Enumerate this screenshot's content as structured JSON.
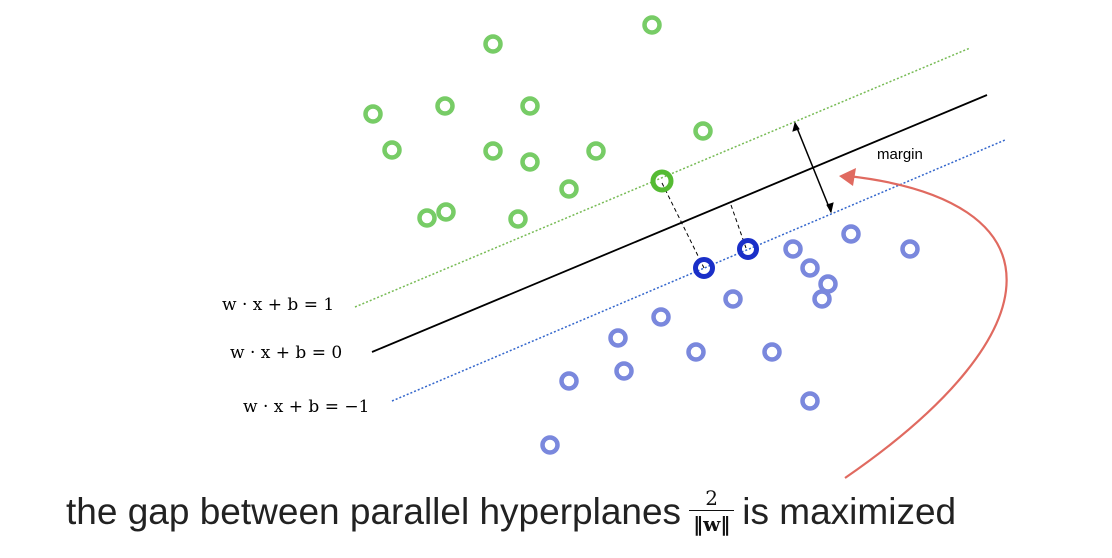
{
  "equations": {
    "plus": "w · x + b = 1",
    "zero": "w · x + b = 0",
    "minus": "w · x + b = −1"
  },
  "margin_label": "margin",
  "caption": {
    "before": "the gap between parallel hyperplanes",
    "fraction_numerator": "2",
    "fraction_denominator": "‖w‖",
    "after": "is maximized"
  },
  "colors": {
    "class_positive": "#77cc66",
    "class_negative": "#7a88dd",
    "support_vector_positive": "#55bb33",
    "support_vector_negative": "#1a2fc8",
    "hyperplane": "#000000",
    "positive_margin_line": "#77bb55",
    "negative_margin_line": "#3366cc",
    "arrow": "#e06a60"
  }
}
